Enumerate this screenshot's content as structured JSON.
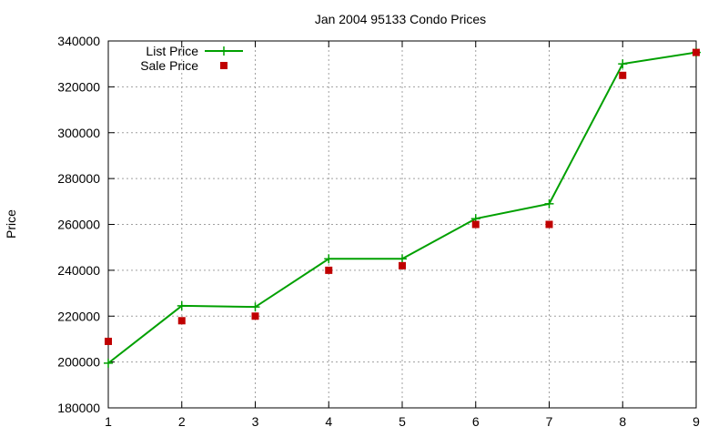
{
  "chart_data": {
    "type": "line",
    "title": "Jan 2004 95133 Condo Prices",
    "xlabel": "",
    "ylabel": "Price",
    "x": [
      1,
      2,
      3,
      4,
      5,
      6,
      7,
      8,
      9
    ],
    "xlim": [
      1,
      9
    ],
    "ylim": [
      180000,
      340000
    ],
    "x_ticks": [
      "1",
      "2",
      "3",
      "4",
      "5",
      "6",
      "7",
      "8",
      "9"
    ],
    "y_ticks": [
      "180000",
      "200000",
      "220000",
      "240000",
      "260000",
      "280000",
      "300000",
      "320000",
      "340000"
    ],
    "grid": true,
    "legend_position": "top-left",
    "series": [
      {
        "name": "List Price",
        "kind": "line-with-markers",
        "color": "#00a000",
        "marker": "plus",
        "values": [
          199500,
          224500,
          224000,
          245000,
          245000,
          262500,
          269000,
          330000,
          335000
        ]
      },
      {
        "name": "Sale Price",
        "kind": "points",
        "color": "#c00000",
        "marker": "square",
        "values": [
          209000,
          218000,
          220000,
          240000,
          242000,
          260000,
          260000,
          325000,
          335000
        ]
      }
    ]
  }
}
